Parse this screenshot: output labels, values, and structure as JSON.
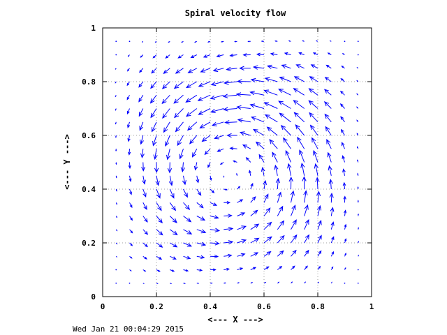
{
  "chart_data": {
    "type": "vector_field",
    "title": "Spiral velocity flow",
    "xlabel": "<--- X --->",
    "ylabel": "<--- Y --->",
    "xlim": [
      0,
      1
    ],
    "ylim": [
      0,
      1
    ],
    "xticks": [
      "0",
      "0.2",
      "0.4",
      "0.6",
      "0.8",
      "1"
    ],
    "yticks": [
      "0",
      "0.2",
      "0.4",
      "0.6",
      "0.8",
      "1"
    ],
    "grid": true,
    "legend": "none",
    "field": {
      "x_range": [
        0.05,
        0.95
      ],
      "y_range": [
        0.05,
        0.95
      ],
      "samples_per_axis": 19,
      "rotation": "counter-clockwise",
      "center": [
        0.47,
        0.45
      ]
    },
    "colors": {
      "arrow": "#0000ff",
      "grid": "#a0a0a0",
      "axes": "#000000"
    }
  },
  "footer": {
    "timestamp": "Wed Jan 21 00:04:29 2015"
  }
}
